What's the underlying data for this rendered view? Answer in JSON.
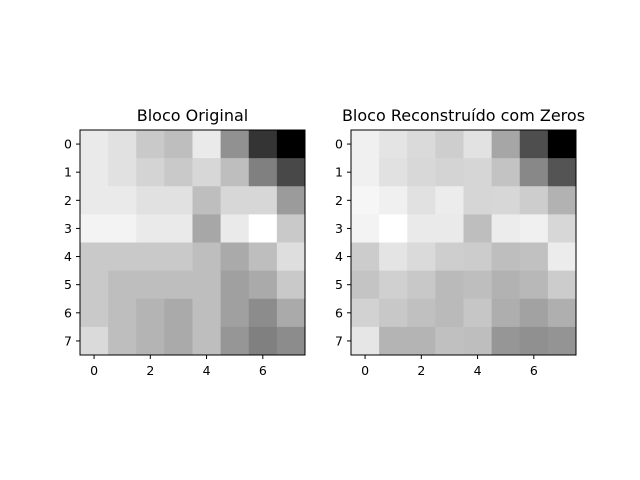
{
  "chart_data": [
    {
      "type": "heatmap",
      "title": "Bloco Original",
      "colormap": "gray",
      "vmin": 0,
      "vmax": 255,
      "xticks": [
        "0",
        "2",
        "4",
        "6"
      ],
      "yticks": [
        "0",
        "1",
        "2",
        "3",
        "4",
        "5",
        "6",
        "7"
      ],
      "xlim": [
        -0.5,
        7.5
      ],
      "ylim": [
        7.5,
        -0.5
      ],
      "matrix": [
        [
          234,
          225,
          201,
          190,
          234,
          145,
          52,
          0
        ],
        [
          234,
          225,
          212,
          201,
          215,
          190,
          128,
          72
        ],
        [
          234,
          234,
          225,
          225,
          190,
          215,
          215,
          155
        ],
        [
          243,
          243,
          234,
          234,
          167,
          234,
          255,
          201
        ],
        [
          201,
          201,
          201,
          201,
          190,
          170,
          190,
          222
        ],
        [
          201,
          190,
          190,
          190,
          190,
          160,
          170,
          201
        ],
        [
          201,
          190,
          180,
          170,
          190,
          160,
          140,
          170
        ],
        [
          218,
          190,
          180,
          170,
          190,
          150,
          128,
          140
        ]
      ]
    },
    {
      "type": "heatmap",
      "title": "Bloco Reconstruído com Zeros",
      "colormap": "gray",
      "vmin": 0,
      "vmax": 255,
      "xticks": [
        "0",
        "2",
        "4",
        "6"
      ],
      "yticks": [
        "0",
        "1",
        "2",
        "3",
        "4",
        "5",
        "6",
        "7"
      ],
      "xlim": [
        -0.5,
        7.5
      ],
      "ylim": [
        7.5,
        -0.5
      ],
      "matrix": [
        [
          240,
          228,
          218,
          206,
          226,
          166,
          78,
          0
        ],
        [
          240,
          225,
          216,
          212,
          214,
          195,
          136,
          84
        ],
        [
          246,
          240,
          225,
          236,
          214,
          215,
          205,
          178
        ],
        [
          243,
          255,
          234,
          234,
          190,
          236,
          240,
          215
        ],
        [
          204,
          228,
          218,
          206,
          204,
          190,
          193,
          236
        ],
        [
          196,
          208,
          200,
          186,
          190,
          178,
          184,
          204
        ],
        [
          210,
          200,
          192,
          186,
          198,
          174,
          162,
          175
        ],
        [
          230,
          180,
          180,
          192,
          190,
          150,
          144,
          148
        ]
      ]
    }
  ]
}
